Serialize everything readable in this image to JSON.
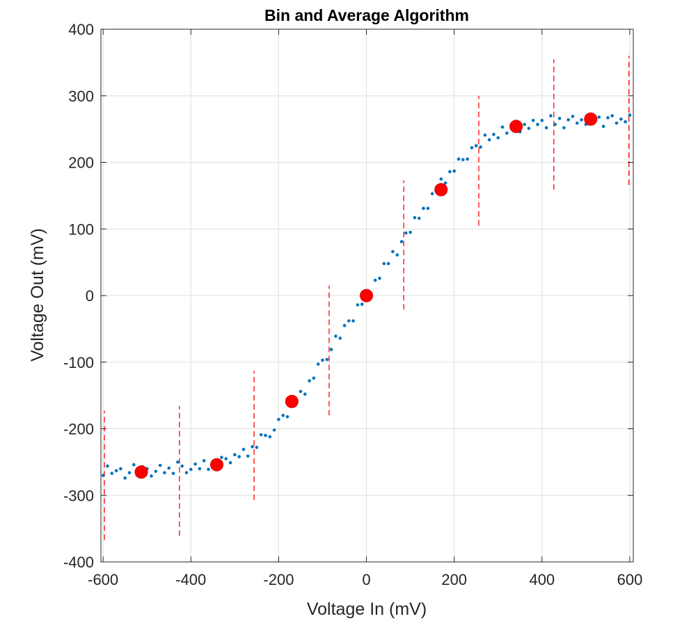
{
  "chart_data": {
    "type": "scatter",
    "title": "Bin and Average Algorithm",
    "xlabel": "Voltage In (mV)",
    "ylabel": "Voltage Out (mV)",
    "xlim": [
      -605,
      608
    ],
    "ylim": [
      -400,
      400
    ],
    "xticks": [
      -600,
      -400,
      -200,
      0,
      200,
      400,
      600
    ],
    "xtick_labels": [
      "-600",
      "-400",
      "-200",
      "0",
      "200",
      "400",
      "600"
    ],
    "yticks": [
      -400,
      -300,
      -200,
      -100,
      0,
      100,
      200,
      300,
      400
    ],
    "ytick_labels": [
      "-400",
      "-300",
      "-200",
      "-100",
      "0",
      "100",
      "200",
      "300",
      "400"
    ],
    "grid": true,
    "colors": {
      "samples": "#0072BD",
      "bin_means": "#FF0000",
      "bin_edges": "#FF0000"
    },
    "samples": {
      "x": [
        -600,
        -590,
        -580,
        -570,
        -560,
        -550,
        -540,
        -530,
        -520,
        -510,
        -500,
        -490,
        -480,
        -470,
        -460,
        -450,
        -440,
        -430,
        -420,
        -410,
        -400,
        -390,
        -380,
        -370,
        -360,
        -350,
        -340,
        -330,
        -320,
        -310,
        -300,
        -290,
        -280,
        -270,
        -260,
        -250,
        -240,
        -230,
        -220,
        -210,
        -200,
        -190,
        -180,
        -170,
        -160,
        -150,
        -140,
        -130,
        -120,
        -110,
        -100,
        -90,
        -80,
        -70,
        -60,
        -50,
        -40,
        -30,
        -20,
        -10,
        0,
        10,
        20,
        30,
        40,
        50,
        60,
        70,
        80,
        90,
        100,
        110,
        120,
        130,
        140,
        150,
        160,
        170,
        180,
        190,
        200,
        210,
        220,
        230,
        240,
        250,
        260,
        270,
        280,
        290,
        300,
        310,
        320,
        330,
        340,
        350,
        360,
        370,
        380,
        390,
        400,
        410,
        420,
        430,
        440,
        450,
        460,
        470,
        480,
        490,
        500,
        510,
        520,
        530,
        540,
        550,
        560,
        570,
        580,
        590,
        600
      ],
      "y": [
        -270,
        -256,
        -267,
        -263,
        -260,
        -274,
        -266,
        -254,
        -268,
        -257,
        -260,
        -271,
        -264,
        -255,
        -266,
        -259,
        -267,
        -250,
        -256,
        -266,
        -261,
        -253,
        -260,
        -248,
        -261,
        -253,
        -261,
        -243,
        -245,
        -251,
        -239,
        -242,
        -231,
        -241,
        -227,
        -228,
        -209,
        -210,
        -212,
        -202,
        -186,
        -180,
        -182,
        -158,
        -160,
        -144,
        -148,
        -128,
        -124,
        -103,
        -97,
        -96,
        -81,
        -61,
        -64,
        -45,
        -38,
        -38,
        -14,
        -13,
        5,
        3,
        23,
        26,
        48,
        48,
        66,
        61,
        81,
        94,
        95,
        117,
        116,
        131,
        131,
        153,
        157,
        175,
        169,
        186,
        187,
        205,
        204,
        205,
        222,
        225,
        223,
        241,
        234,
        242,
        237,
        253,
        244,
        253,
        261,
        246,
        257,
        251,
        263,
        257,
        263,
        252,
        270,
        257,
        266,
        252,
        264,
        269,
        259,
        264,
        257,
        271,
        261,
        268,
        254,
        267,
        270,
        259,
        265,
        261,
        271
      ]
    },
    "bin_means": {
      "x": [
        -513,
        -341,
        -170,
        0,
        170,
        341,
        511
      ],
      "y": [
        -265,
        -254,
        -159,
        0,
        159,
        254,
        265
      ]
    },
    "bin_edges": [
      {
        "x": -597,
        "y": [
          -367,
          -173
        ]
      },
      {
        "x": -426,
        "y": [
          -361,
          -166
        ]
      },
      {
        "x": -256,
        "y": [
          -307,
          -113
        ]
      },
      {
        "x": -85,
        "y": [
          -180,
          15
        ]
      },
      {
        "x": 85,
        "y": [
          -21,
          173
        ]
      },
      {
        "x": 256,
        "y": [
          105,
          300
        ]
      },
      {
        "x": 427,
        "y": [
          159,
          355
        ]
      },
      {
        "x": 598,
        "y": [
          166,
          360
        ]
      }
    ]
  }
}
